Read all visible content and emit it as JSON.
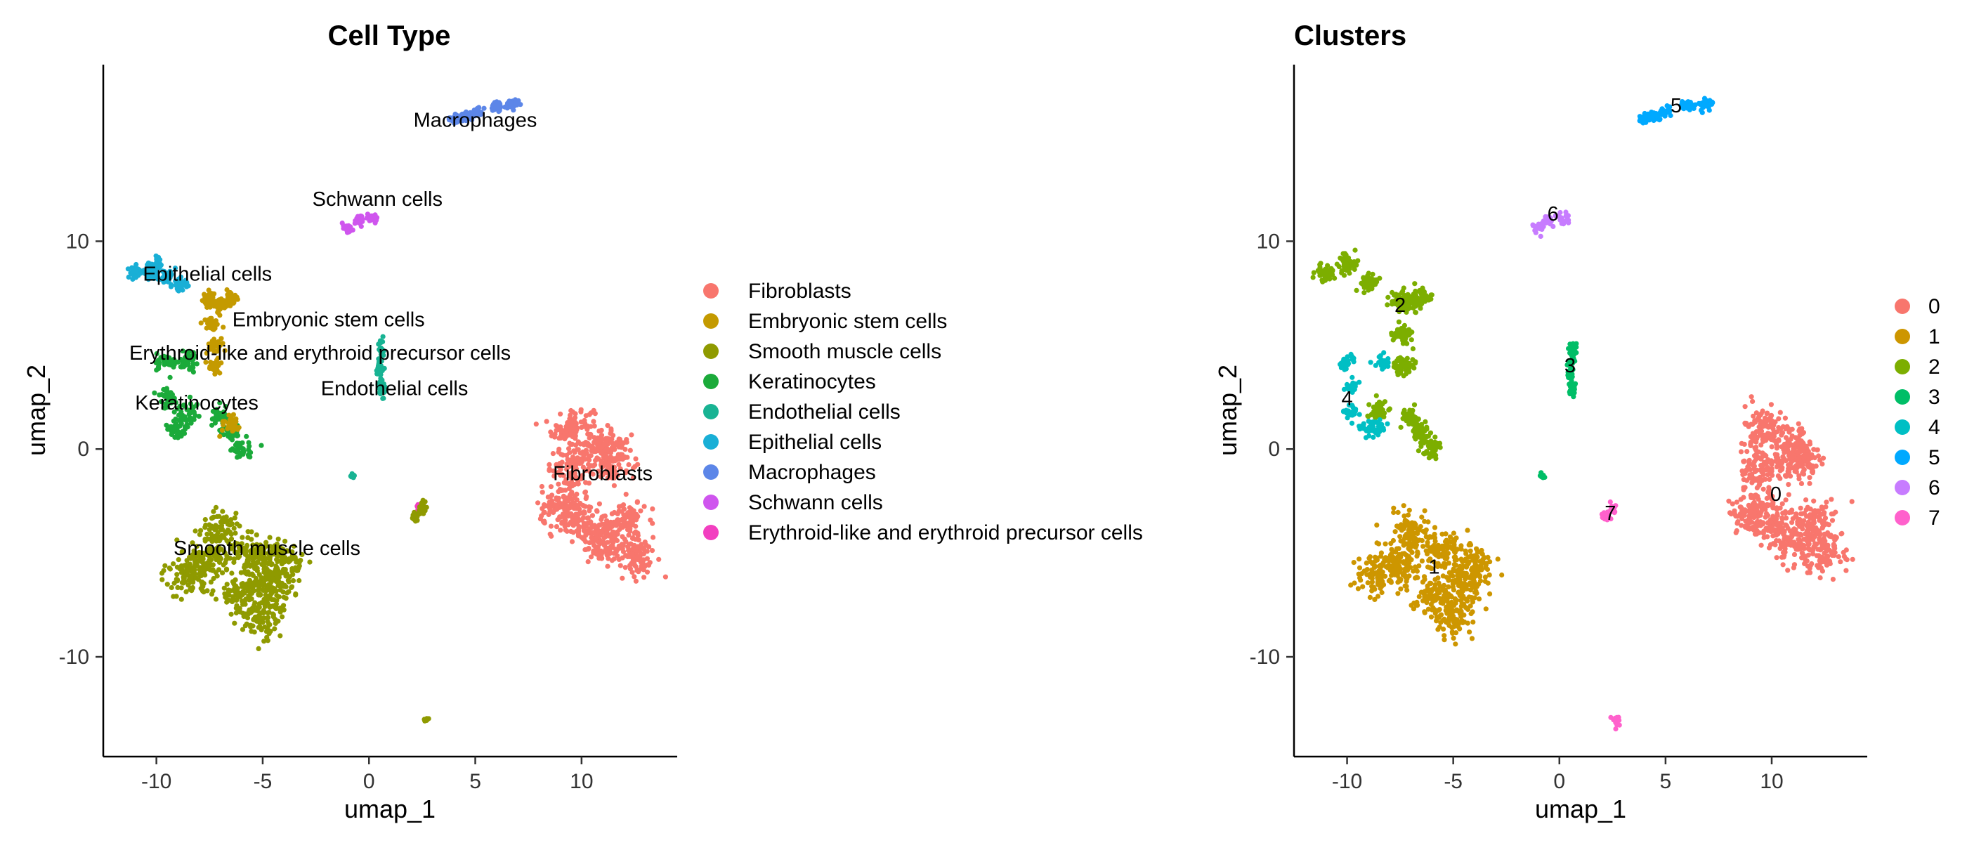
{
  "colors": {
    "Fibroblasts": "#F8766D",
    "Embryonic stem cells": "#CD9600",
    "Smooth muscle cells": "#7CAE00",
    "Keratinocytes": "#0CB702",
    "Endothelial cells": "#00BE67",
    "Epithelial cells": "#00BFC4",
    "Macrophages": "#00A9FF",
    "Schwann cells": "#C77CFF",
    "Erythroid-like and erythroid precursor cells": "#FF61CC"
  },
  "chart_data": [
    {
      "type": "scatter",
      "title": "Cell Type",
      "xlabel": "umap_1",
      "ylabel": "umap_2",
      "xlim": [
        -12.5,
        14.5
      ],
      "ylim": [
        -14.8,
        18.5
      ],
      "xticks": [
        -10,
        -5,
        0,
        5,
        10
      ],
      "yticks": [
        -10,
        0,
        10
      ],
      "grid": false,
      "legend_position": "right",
      "legend": [
        {
          "label": "Fibroblasts",
          "color": "#F8766D"
        },
        {
          "label": "Embryonic stem cells",
          "color": "#C49A00"
        },
        {
          "label": "Smooth muscle cells",
          "color": "#8F9A00"
        },
        {
          "label": "Keratinocytes",
          "color": "#1BAA3A"
        },
        {
          "label": "Endothelial cells",
          "color": "#18B393"
        },
        {
          "label": "Epithelial cells",
          "color": "#19AFD6"
        },
        {
          "label": "Macrophages",
          "color": "#5C86E8"
        },
        {
          "label": "Schwann cells",
          "color": "#CF55EE"
        },
        {
          "label": "Erythroid-like and erythroid precursor cells",
          "color": "#F23FC0"
        }
      ],
      "annotations": [
        {
          "text": "Macrophages",
          "x": 5.0,
          "y": 15.5
        },
        {
          "text": "Schwann cells",
          "x": 0.4,
          "y": 11.7
        },
        {
          "text": "Epithelial cells",
          "x": -7.6,
          "y": 8.1
        },
        {
          "text": "Embryonic stem cells",
          "x": -1.9,
          "y": 5.9
        },
        {
          "text": "Erythroid-like and erythroid precursor cells",
          "x": -2.3,
          "y": 4.3
        },
        {
          "text": "Endothelial cells",
          "x": 1.2,
          "y": 2.6
        },
        {
          "text": "Keratinocytes",
          "x": -8.1,
          "y": 1.9
        },
        {
          "text": "Fibroblasts",
          "x": 11.0,
          "y": -1.5
        },
        {
          "text": "Smooth muscle cells",
          "x": -4.8,
          "y": -5.1
        }
      ],
      "clusters": [
        {
          "label": "Fibroblasts",
          "color": "#F8766D",
          "n": 900,
          "pts": [
            [
              9.6,
              1.0
            ],
            [
              9.5,
              -1.0
            ],
            [
              11.5,
              -0.5
            ],
            [
              10.0,
              -3.5
            ],
            [
              12.0,
              -3.5
            ],
            [
              12.5,
              -5.0
            ],
            [
              11.0,
              -4.5
            ],
            [
              9.0,
              -3.0
            ],
            [
              11.0,
              0.0
            ]
          ],
          "sx": 0.9,
          "sy": 1.0
        },
        {
          "label": "Smooth muscle cells",
          "color": "#8F9A00",
          "n": 750,
          "pts": [
            [
              -7.0,
              -4.0
            ],
            [
              -5.5,
              -5.0
            ],
            [
              -4.5,
              -6.5
            ],
            [
              -6.0,
              -7.0
            ],
            [
              -8.5,
              -6.0
            ],
            [
              -5.0,
              -8.0
            ],
            [
              -4.0,
              -5.5
            ],
            [
              -7.5,
              -5.5
            ]
          ],
          "sx": 0.9,
          "sy": 0.9
        },
        {
          "label": "Keratinocytes",
          "color": "#1BAA3A",
          "n": 300,
          "pts": [
            [
              -9.5,
              4.2
            ],
            [
              -9.5,
              2.5
            ],
            [
              -9.0,
              1.0
            ],
            [
              -8.5,
              1.8
            ],
            [
              -7.0,
              1.5
            ],
            [
              -6.5,
              0.8
            ],
            [
              -6.0,
              0.0
            ],
            [
              -8.5,
              4.2
            ]
          ],
          "sx": 0.45,
          "sy": 0.45
        },
        {
          "label": "Embryonic stem cells",
          "color": "#C49A00",
          "n": 260,
          "pts": [
            [
              -7.5,
              7.2
            ],
            [
              -7.0,
              7.0
            ],
            [
              -7.4,
              6.0
            ],
            [
              -7.3,
              5.0
            ],
            [
              -7.2,
              4.0
            ],
            [
              -6.5,
              7.3
            ],
            [
              -6.5,
              1.2
            ]
          ],
          "sx": 0.3,
          "sy": 0.35
        },
        {
          "label": "Epithelial cells",
          "color": "#19AFD6",
          "n": 160,
          "pts": [
            [
              -11.0,
              8.5
            ],
            [
              -10.3,
              8.5
            ],
            [
              -9.5,
              8.3
            ],
            [
              -8.8,
              7.9
            ],
            [
              -10.0,
              8.9
            ]
          ],
          "sx": 0.35,
          "sy": 0.3
        },
        {
          "label": "Endothelial cells",
          "color": "#18B393",
          "n": 90,
          "pts": [
            [
              0.6,
              4.7
            ],
            [
              0.5,
              3.8
            ],
            [
              0.6,
              3.0
            ]
          ],
          "sx": 0.15,
          "sy": 0.45
        },
        {
          "label": "Macrophages",
          "color": "#5C86E8",
          "n": 150,
          "pts": [
            [
              4.0,
              15.9
            ],
            [
              5.0,
              16.2
            ],
            [
              6.0,
              16.5
            ],
            [
              6.8,
              16.6
            ],
            [
              4.5,
              16.0
            ]
          ],
          "sx": 0.3,
          "sy": 0.2
        },
        {
          "label": "Schwann cells",
          "color": "#CF55EE",
          "n": 60,
          "pts": [
            [
              -0.5,
              11.0
            ],
            [
              0.2,
              11.1
            ],
            [
              -1.0,
              10.6
            ]
          ],
          "sx": 0.25,
          "sy": 0.25
        },
        {
          "label": "Erythroid-like and erythroid precursor cells",
          "color": "#F23FC0",
          "n": 8,
          "pts": [
            [
              2.3,
              -2.9
            ]
          ],
          "sx": 0.1,
          "sy": 0.2
        },
        {
          "label": "Keratinocytes",
          "color": "#8F9A00",
          "n": 40,
          "pts": [
            [
              2.2,
              -3.2
            ],
            [
              2.5,
              -2.8
            ]
          ],
          "sx": 0.15,
          "sy": 0.25
        },
        {
          "label": "Endothelial cells",
          "color": "#18B393",
          "n": 12,
          "pts": [
            [
              -0.8,
              -1.3
            ]
          ],
          "sx": 0.12,
          "sy": 0.1
        },
        {
          "label": "Smooth muscle cells",
          "color": "#8F9A00",
          "n": 10,
          "pts": [
            [
              2.7,
              -13.0
            ]
          ],
          "sx": 0.1,
          "sy": 0.08
        }
      ]
    },
    {
      "type": "scatter",
      "title": "Clusters",
      "xlabel": "umap_1",
      "ylabel": "umap_2",
      "xlim": [
        -12.5,
        14.5
      ],
      "ylim": [
        -14.8,
        18.5
      ],
      "xticks": [
        -10,
        -5,
        0,
        5,
        10
      ],
      "yticks": [
        -10,
        0,
        10
      ],
      "grid": false,
      "legend_position": "right",
      "legend": [
        {
          "label": "0",
          "color": "#F8766D"
        },
        {
          "label": "1",
          "color": "#CD9600"
        },
        {
          "label": "2",
          "color": "#7CAE00"
        },
        {
          "label": "3",
          "color": "#00BE67"
        },
        {
          "label": "4",
          "color": "#00BFC4"
        },
        {
          "label": "5",
          "color": "#00A9FF"
        },
        {
          "label": "6",
          "color": "#C77CFF"
        },
        {
          "label": "7",
          "color": "#FF61CC"
        }
      ],
      "annotations": [
        {
          "text": "5",
          "x": 5.5,
          "y": 16.2
        },
        {
          "text": "6",
          "x": -0.3,
          "y": 11.0
        },
        {
          "text": "2",
          "x": -7.5,
          "y": 6.6
        },
        {
          "text": "3",
          "x": 0.5,
          "y": 3.7
        },
        {
          "text": "4",
          "x": -10.0,
          "y": 2.1
        },
        {
          "text": "0",
          "x": 10.2,
          "y": -2.5
        },
        {
          "text": "7",
          "x": 2.4,
          "y": -3.4
        },
        {
          "text": "1",
          "x": -5.9,
          "y": -6.0
        }
      ],
      "clusters": [
        {
          "label": "0",
          "color": "#F8766D",
          "n": 900,
          "pts": [
            [
              9.6,
              1.0
            ],
            [
              9.5,
              -1.0
            ],
            [
              11.5,
              -0.5
            ],
            [
              10.0,
              -3.5
            ],
            [
              12.0,
              -3.5
            ],
            [
              12.5,
              -5.0
            ],
            [
              11.0,
              -4.5
            ],
            [
              9.0,
              -3.0
            ],
            [
              11.0,
              0.0
            ]
          ],
          "sx": 0.9,
          "sy": 1.0
        },
        {
          "label": "1",
          "color": "#CD9600",
          "n": 750,
          "pts": [
            [
              -7.0,
              -4.0
            ],
            [
              -5.5,
              -5.0
            ],
            [
              -4.5,
              -6.5
            ],
            [
              -6.0,
              -7.0
            ],
            [
              -8.5,
              -6.0
            ],
            [
              -5.0,
              -8.0
            ],
            [
              -4.0,
              -5.5
            ],
            [
              -7.5,
              -5.5
            ]
          ],
          "sx": 0.9,
          "sy": 0.9
        },
        {
          "label": "2",
          "color": "#7CAE00",
          "n": 560,
          "pts": [
            [
              -11.0,
              8.5
            ],
            [
              -10.0,
              8.9
            ],
            [
              -9.0,
              8.0
            ],
            [
              -7.5,
              7.2
            ],
            [
              -7.0,
              7.0
            ],
            [
              -7.4,
              5.5
            ],
            [
              -7.3,
              4.0
            ],
            [
              -7.0,
              1.5
            ],
            [
              -6.5,
              0.8
            ],
            [
              -6.0,
              0.0
            ],
            [
              -8.5,
              1.8
            ],
            [
              -6.5,
              7.3
            ]
          ],
          "sx": 0.4,
          "sy": 0.4
        },
        {
          "label": "3",
          "color": "#00BE67",
          "n": 90,
          "pts": [
            [
              0.6,
              4.7
            ],
            [
              0.5,
              3.8
            ],
            [
              0.6,
              3.0
            ]
          ],
          "sx": 0.15,
          "sy": 0.45
        },
        {
          "label": "4",
          "color": "#00BFC4",
          "n": 140,
          "pts": [
            [
              -10.0,
              4.2
            ],
            [
              -9.8,
              3.0
            ],
            [
              -9.8,
              1.8
            ],
            [
              -9.0,
              1.0
            ],
            [
              -8.2,
              4.2
            ],
            [
              -8.5,
              1.0
            ]
          ],
          "sx": 0.35,
          "sy": 0.35
        },
        {
          "label": "5",
          "color": "#00A9FF",
          "n": 150,
          "pts": [
            [
              4.0,
              15.9
            ],
            [
              5.0,
              16.2
            ],
            [
              6.0,
              16.5
            ],
            [
              6.8,
              16.6
            ],
            [
              4.5,
              16.0
            ]
          ],
          "sx": 0.3,
          "sy": 0.2
        },
        {
          "label": "6",
          "color": "#C77CFF",
          "n": 60,
          "pts": [
            [
              -0.5,
              11.0
            ],
            [
              0.2,
              11.1
            ],
            [
              -1.0,
              10.6
            ]
          ],
          "sx": 0.25,
          "sy": 0.25
        },
        {
          "label": "7",
          "color": "#FF61CC",
          "n": 50,
          "pts": [
            [
              2.2,
              -3.2
            ],
            [
              2.5,
              -2.8
            ],
            [
              2.7,
              -13.0
            ]
          ],
          "sx": 0.15,
          "sy": 0.25
        },
        {
          "label": "3",
          "color": "#00BE67",
          "n": 12,
          "pts": [
            [
              -0.8,
              -1.3
            ]
          ],
          "sx": 0.12,
          "sy": 0.1
        }
      ]
    }
  ]
}
